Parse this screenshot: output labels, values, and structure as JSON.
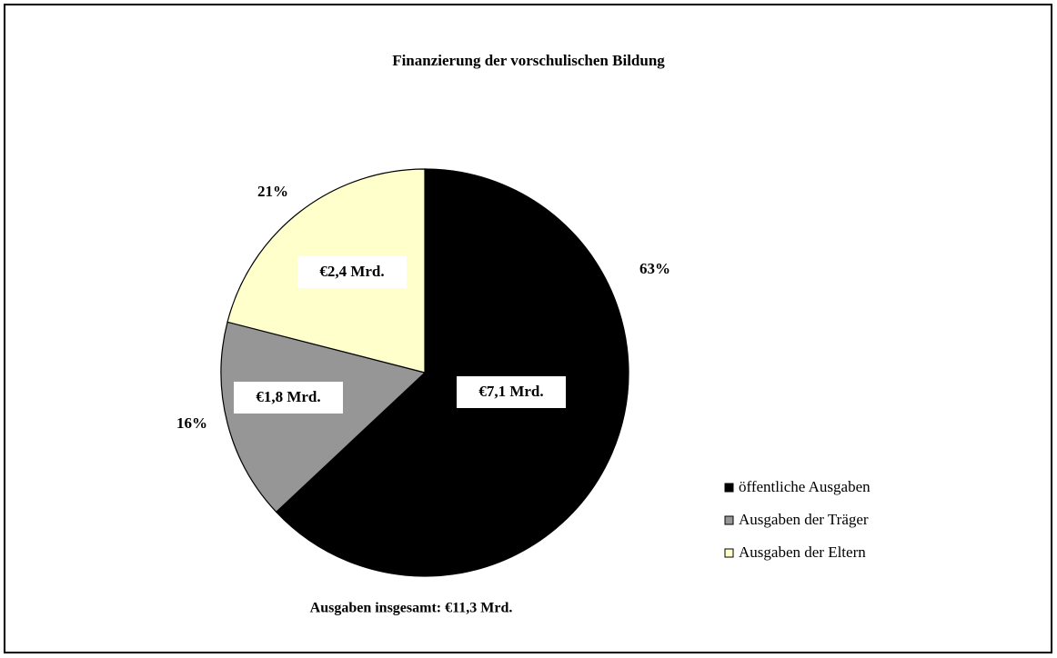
{
  "chart_data": {
    "type": "pie",
    "title": "Finanzierung der vorschulischen Bildung",
    "categories": [
      "öffentliche Ausgaben",
      "Ausgaben der Träger",
      "Ausgaben der Eltern"
    ],
    "values": [
      63,
      16,
      21
    ],
    "value_labels": [
      "63%",
      "16%",
      "21%"
    ],
    "amount_labels": [
      "€7,1 Mrd.",
      "€1,8 Mrd.",
      "€2,4 Mrd."
    ],
    "colors": [
      "#000000",
      "#969696",
      "#ffffcc"
    ],
    "annotation": "Ausgaben insgesamt: €11,3 Mrd.",
    "legend": "right"
  }
}
